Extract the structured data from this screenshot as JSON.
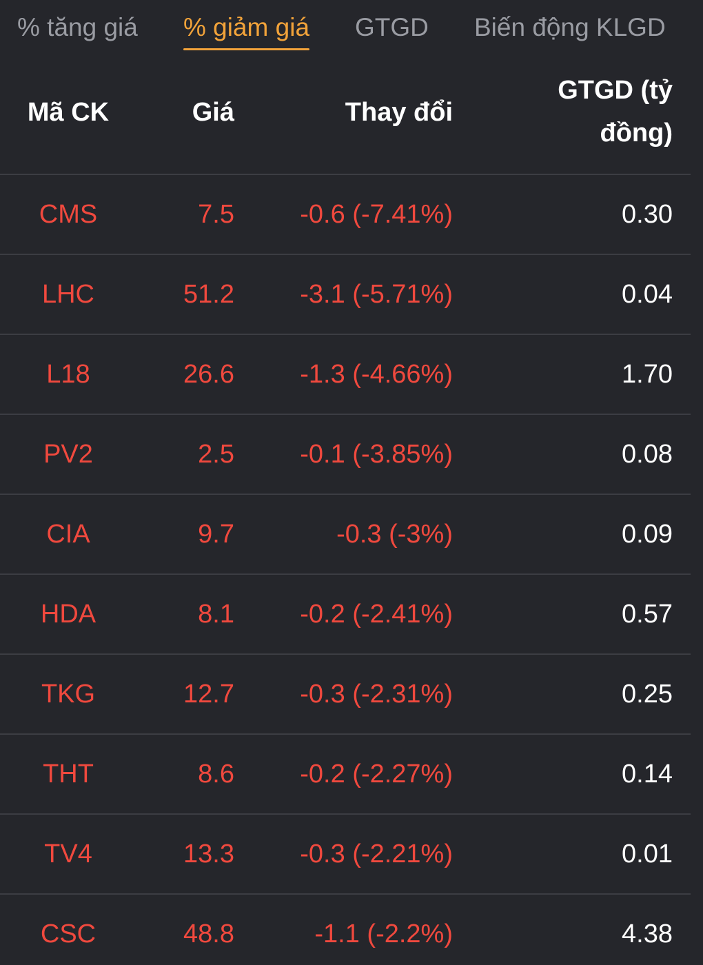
{
  "tabs": [
    {
      "label": "% tăng giá",
      "active": false
    },
    {
      "label": "% giảm giá",
      "active": true
    },
    {
      "label": "GTGD",
      "active": false
    },
    {
      "label": "Biến động KLGD",
      "active": false
    }
  ],
  "table": {
    "headers": {
      "code": "Mã CK",
      "price": "Giá",
      "change": "Thay đổi",
      "value": "GTGD (tỷ đồng)"
    },
    "rows": [
      {
        "code": "CMS",
        "price": "7.5",
        "change": "-0.6 (-7.41%)",
        "value": "0.30"
      },
      {
        "code": "LHC",
        "price": "51.2",
        "change": "-3.1 (-5.71%)",
        "value": "0.04"
      },
      {
        "code": "L18",
        "price": "26.6",
        "change": "-1.3 (-4.66%)",
        "value": "1.70"
      },
      {
        "code": "PV2",
        "price": "2.5",
        "change": "-0.1 (-3.85%)",
        "value": "0.08"
      },
      {
        "code": "CIA",
        "price": "9.7",
        "change": "-0.3 (-3%)",
        "value": "0.09"
      },
      {
        "code": "HDA",
        "price": "8.1",
        "change": "-0.2 (-2.41%)",
        "value": "0.57"
      },
      {
        "code": "TKG",
        "price": "12.7",
        "change": "-0.3 (-2.31%)",
        "value": "0.25"
      },
      {
        "code": "THT",
        "price": "8.6",
        "change": "-0.2 (-2.27%)",
        "value": "0.14"
      },
      {
        "code": "TV4",
        "price": "13.3",
        "change": "-0.3 (-2.21%)",
        "value": "0.01"
      },
      {
        "code": "CSC",
        "price": "48.8",
        "change": "-1.1 (-2.2%)",
        "value": "4.38"
      }
    ]
  },
  "colors": {
    "background": "#25262b",
    "accent": "#f2a33a",
    "down": "#f0493e",
    "text": "#ffffff",
    "muted": "#9a9ca3"
  }
}
